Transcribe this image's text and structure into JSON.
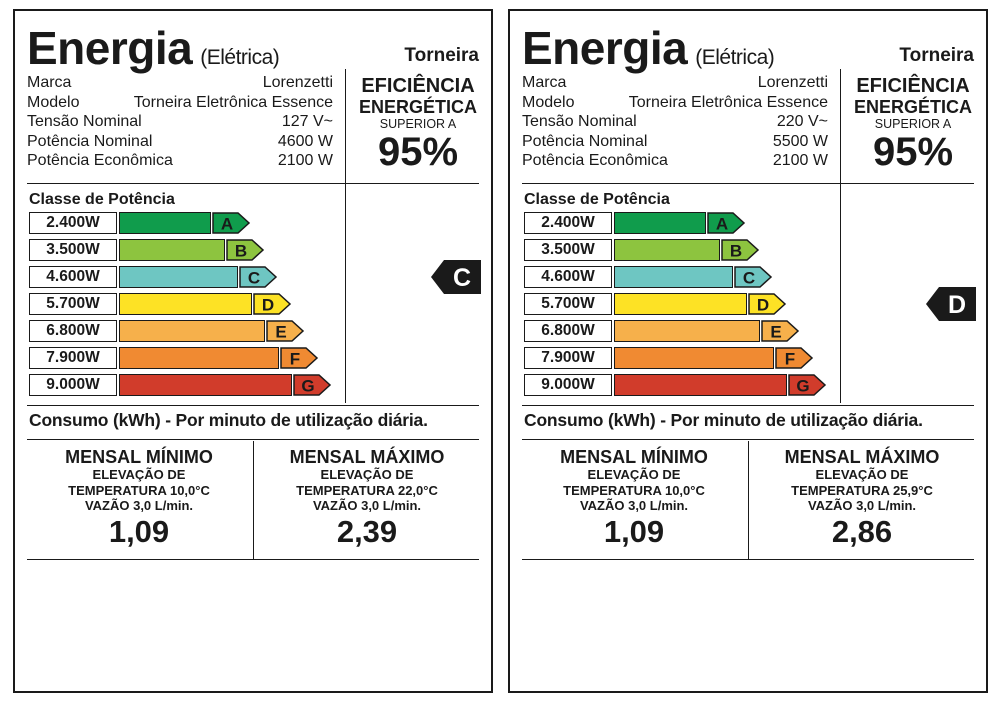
{
  "colors": {
    "A": "#109c4c",
    "B": "#8dc43f",
    "C": "#6ec6c2",
    "D": "#fde225",
    "E": "#f6b04b",
    "F": "#f08a32",
    "G": "#d13c2b",
    "ink": "#1a1a1a"
  },
  "labels": [
    {
      "title": "Energia",
      "subtitle": "(Elétrica)",
      "product": "Torneira",
      "specs": [
        {
          "k": "Marca",
          "v": "Lorenzetti"
        },
        {
          "k": "Modelo",
          "v": "Torneira Eletrônica Essence"
        },
        {
          "k": "Tensão Nominal",
          "v": "127 V~"
        },
        {
          "k": "Potência Nominal",
          "v": "4600 W"
        },
        {
          "k": "Potência Econômica",
          "v": "2100 W"
        }
      ],
      "efficiency": {
        "line1": "EFICIÊNCIA",
        "line2": "ENERGÉTICA",
        "line3": "SUPERIOR A",
        "value": "95%"
      },
      "class_title": "Classe de Potência",
      "classes": [
        {
          "watts": "2.400W",
          "letter": "A"
        },
        {
          "watts": "3.500W",
          "letter": "B"
        },
        {
          "watts": "4.600W",
          "letter": "C"
        },
        {
          "watts": "5.700W",
          "letter": "D"
        },
        {
          "watts": "6.800W",
          "letter": "E"
        },
        {
          "watts": "7.900W",
          "letter": "F"
        },
        {
          "watts": "9.000W",
          "letter": "G"
        }
      ],
      "rating": "C",
      "consumo_title": "Consumo (kWh) - Por minuto de utilização diária.",
      "min": {
        "head": "MENSAL MÍNIMO",
        "l1": "ELEVAÇÃO DE",
        "l2": "TEMPERATURA 10,0°C",
        "l3": "VAZÃO 3,0 L/min.",
        "value": "1,09"
      },
      "max": {
        "head": "MENSAL MÁXIMO",
        "l1": "ELEVAÇÃO DE",
        "l2": "TEMPERATURA 22,0°C",
        "l3": "VAZÃO 3,0 L/min.",
        "value": "2,39"
      }
    },
    {
      "title": "Energia",
      "subtitle": "(Elétrica)",
      "product": "Torneira",
      "specs": [
        {
          "k": "Marca",
          "v": "Lorenzetti"
        },
        {
          "k": "Modelo",
          "v": "Torneira Eletrônica Essence"
        },
        {
          "k": "Tensão Nominal",
          "v": "220 V~"
        },
        {
          "k": "Potência Nominal",
          "v": "5500 W"
        },
        {
          "k": "Potência Econômica",
          "v": "2100 W"
        }
      ],
      "efficiency": {
        "line1": "EFICIÊNCIA",
        "line2": "ENERGÉTICA",
        "line3": "SUPERIOR A",
        "value": "95%"
      },
      "class_title": "Classe de Potência",
      "classes": [
        {
          "watts": "2.400W",
          "letter": "A"
        },
        {
          "watts": "3.500W",
          "letter": "B"
        },
        {
          "watts": "4.600W",
          "letter": "C"
        },
        {
          "watts": "5.700W",
          "letter": "D"
        },
        {
          "watts": "6.800W",
          "letter": "E"
        },
        {
          "watts": "7.900W",
          "letter": "F"
        },
        {
          "watts": "9.000W",
          "letter": "G"
        }
      ],
      "rating": "D",
      "consumo_title": "Consumo (kWh) - Por minuto de utilização diária.",
      "min": {
        "head": "MENSAL MÍNIMO",
        "l1": "ELEVAÇÃO DE",
        "l2": "TEMPERATURA 10,0°C",
        "l3": "VAZÃO 3,0 L/min.",
        "value": "1,09"
      },
      "max": {
        "head": "MENSAL MÁXIMO",
        "l1": "ELEVAÇÃO DE",
        "l2": "TEMPERATURA 25,9°C",
        "l3": "VAZÃO 3,0 L/min.",
        "value": "2,86"
      }
    }
  ]
}
